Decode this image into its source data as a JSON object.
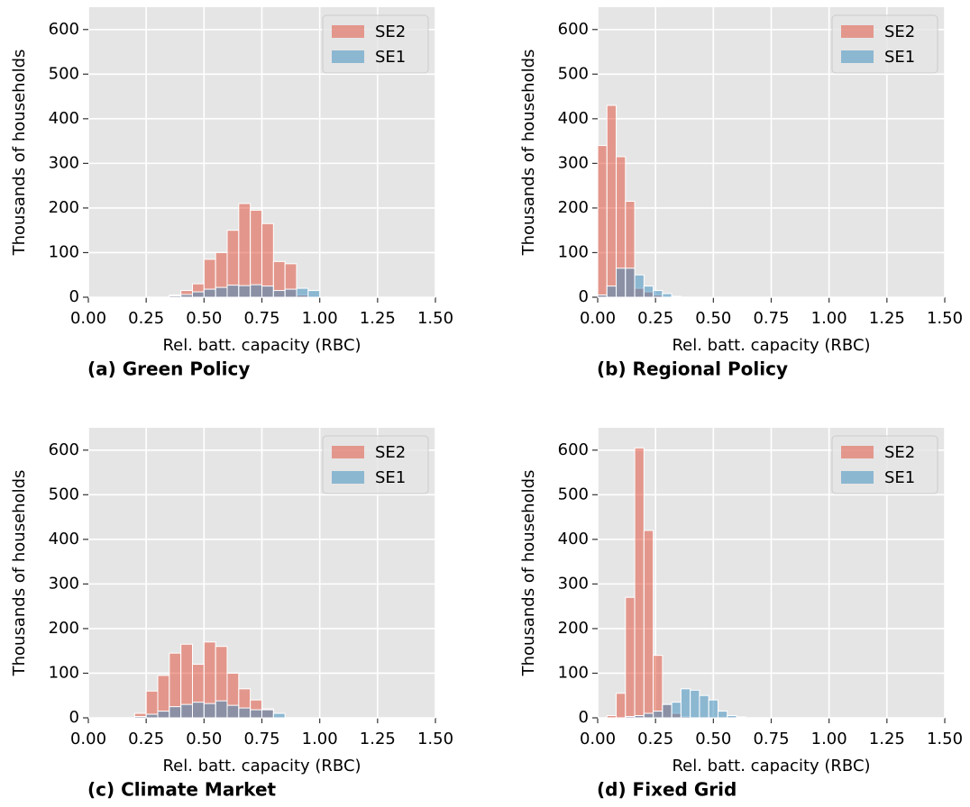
{
  "chart_data": [
    {
      "type": "histogram",
      "caption": "(a) Green Policy",
      "xlabel": "Rel. batt. capacity (RBC)",
      "ylabel": "Thousands of households",
      "xlim": [
        0,
        1.5
      ],
      "ylim": [
        0,
        650
      ],
      "xticks": [
        {
          "value": 0,
          "label": "0.00"
        },
        {
          "value": 0.25,
          "label": "0.25"
        },
        {
          "value": 0.5,
          "label": "0.50"
        },
        {
          "value": 0.75,
          "label": "0.75"
        },
        {
          "value": 1,
          "label": "1.00"
        },
        {
          "value": 1.25,
          "label": "1.25"
        },
        {
          "value": 1.5,
          "label": "1.50"
        }
      ],
      "yticks": [
        0,
        100,
        200,
        300,
        400,
        500,
        600
      ],
      "grid": true,
      "legend": "upper right",
      "bins": [
        0.35,
        0.4,
        0.45,
        0.5,
        0.55,
        0.6,
        0.65,
        0.7,
        0.75,
        0.8,
        0.85,
        0.9,
        0.95,
        1.0,
        1.05,
        1.1
      ],
      "series": [
        {
          "name": "SE2",
          "color": "#E24A33",
          "values": [
            5,
            15,
            30,
            85,
            100,
            150,
            210,
            195,
            165,
            80,
            75,
            5,
            0,
            0,
            0
          ]
        },
        {
          "name": "SE1",
          "color": "#348ABD",
          "values": [
            3,
            6,
            12,
            18,
            22,
            27,
            26,
            28,
            25,
            15,
            18,
            20,
            15,
            0,
            0
          ]
        }
      ]
    },
    {
      "type": "histogram",
      "caption": "(b) Regional Policy",
      "xlabel": "Rel. batt. capacity (RBC)",
      "ylabel": "Thousands of households",
      "xlim": [
        0,
        1.5
      ],
      "ylim": [
        0,
        650
      ],
      "xticks": [
        {
          "value": 0,
          "label": "0.00"
        },
        {
          "value": 0.25,
          "label": "0.25"
        },
        {
          "value": 0.5,
          "label": "0.50"
        },
        {
          "value": 0.75,
          "label": "0.75"
        },
        {
          "value": 1,
          "label": "1.00"
        },
        {
          "value": 1.25,
          "label": "1.25"
        },
        {
          "value": 1.5,
          "label": "1.50"
        }
      ],
      "yticks": [
        0,
        100,
        200,
        300,
        400,
        500,
        600
      ],
      "grid": true,
      "legend": "upper right",
      "bins": [
        0,
        0.04,
        0.08,
        0.12,
        0.16,
        0.2,
        0.24,
        0.28,
        0.32,
        0.36
      ],
      "series": [
        {
          "name": "SE2",
          "color": "#E24A33",
          "values": [
            340,
            430,
            315,
            215,
            20,
            12,
            5,
            2,
            0
          ]
        },
        {
          "name": "SE1",
          "color": "#348ABD",
          "values": [
            5,
            25,
            65,
            65,
            50,
            25,
            15,
            8,
            2
          ]
        }
      ]
    },
    {
      "type": "histogram",
      "caption": "(c) Climate Market",
      "xlabel": "Rel. batt. capacity (RBC)",
      "ylabel": "Thousands of households",
      "xlim": [
        0,
        1.5
      ],
      "ylim": [
        0,
        650
      ],
      "xticks": [
        {
          "value": 0,
          "label": "0.00"
        },
        {
          "value": 0.25,
          "label": "0.25"
        },
        {
          "value": 0.5,
          "label": "0.50"
        },
        {
          "value": 0.75,
          "label": "0.75"
        },
        {
          "value": 1,
          "label": "1.00"
        },
        {
          "value": 1.25,
          "label": "1.25"
        },
        {
          "value": 1.5,
          "label": "1.50"
        }
      ],
      "yticks": [
        0,
        100,
        200,
        300,
        400,
        500,
        600
      ],
      "grid": true,
      "legend": "upper right",
      "bins": [
        0.2,
        0.25,
        0.3,
        0.35,
        0.4,
        0.45,
        0.5,
        0.55,
        0.6,
        0.65,
        0.7,
        0.75,
        0.8,
        0.85
      ],
      "series": [
        {
          "name": "SE2",
          "color": "#E24A33",
          "values": [
            10,
            60,
            95,
            145,
            165,
            120,
            170,
            160,
            100,
            65,
            40,
            20,
            0
          ]
        },
        {
          "name": "SE1",
          "color": "#348ABD",
          "values": [
            3,
            8,
            15,
            25,
            30,
            35,
            32,
            38,
            28,
            22,
            18,
            18,
            10
          ]
        }
      ]
    },
    {
      "type": "histogram",
      "caption": "(d) Fixed Grid",
      "xlabel": "Rel. batt. capacity (RBC)",
      "ylabel": "Thousands of households",
      "xlim": [
        0,
        1.5
      ],
      "ylim": [
        0,
        650
      ],
      "xticks": [
        {
          "value": 0,
          "label": "0.00"
        },
        {
          "value": 0.25,
          "label": "0.25"
        },
        {
          "value": 0.5,
          "label": "0.50"
        },
        {
          "value": 0.75,
          "label": "0.75"
        },
        {
          "value": 1,
          "label": "1.00"
        },
        {
          "value": 1.25,
          "label": "1.25"
        },
        {
          "value": 1.5,
          "label": "1.50"
        }
      ],
      "yticks": [
        0,
        100,
        200,
        300,
        400,
        500,
        600
      ],
      "grid": true,
      "legend": "upper right",
      "bins": [
        0.04,
        0.08,
        0.12,
        0.16,
        0.2,
        0.24,
        0.28,
        0.32,
        0.36,
        0.4,
        0.44,
        0.48,
        0.52,
        0.56,
        0.6,
        0.64
      ],
      "series": [
        {
          "name": "SE2",
          "color": "#E24A33",
          "values": [
            5,
            55,
            270,
            605,
            420,
            140,
            30,
            10,
            3,
            0,
            0,
            0,
            0,
            0,
            0
          ]
        },
        {
          "name": "SE1",
          "color": "#348ABD",
          "values": [
            0,
            0,
            3,
            5,
            10,
            15,
            30,
            35,
            65,
            62,
            50,
            40,
            15,
            5,
            2
          ]
        }
      ]
    }
  ]
}
